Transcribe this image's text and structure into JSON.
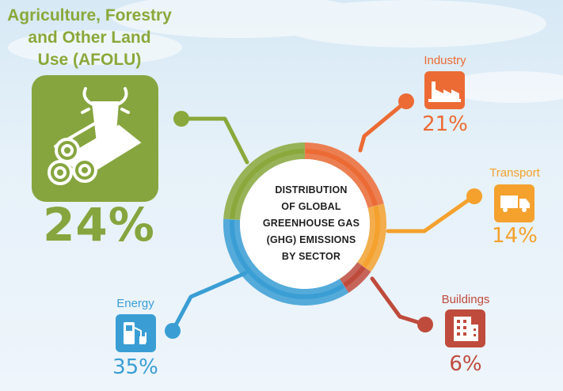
{
  "title": "DISTRIBUTION OF GLOBAL GREENHOUSE GAS (GHG) EMISSIONS BY SECTOR",
  "title_lines": [
    "DISTRIBUTION",
    "OF GLOBAL",
    "GREENHOUSE GAS",
    "(GHG) EMISSIONS",
    "BY  SECTOR"
  ],
  "sectors": [
    {
      "name": "Agriculture, Forestry and Other Land Use (AFOLU)",
      "name_lines": [
        "Agriculture, Forestry",
        "and Other Land",
        "Use (AFOLU)"
      ],
      "percent_label": "24%",
      "value": 24,
      "color": "#8aa83b",
      "icon": "cow-and-logs-icon"
    },
    {
      "name": "Industry",
      "percent_label": "21%",
      "value": 21,
      "color": "#ec6b35",
      "icon": "factory-icon"
    },
    {
      "name": "Transport",
      "percent_label": "14%",
      "value": 14,
      "color": "#f4a12e",
      "icon": "truck-icon"
    },
    {
      "name": "Buildings",
      "percent_label": "6%",
      "value": 6,
      "color": "#bf4b3c",
      "icon": "building-icon"
    },
    {
      "name": "Energy",
      "percent_label": "35%",
      "value": 35,
      "color": "#3a9ed4",
      "icon": "fuel-pump-icon"
    }
  ],
  "chart_data": {
    "type": "pie",
    "title": "DISTRIBUTION OF GLOBAL GREENHOUSE GAS (GHG) EMISSIONS BY SECTOR",
    "categories": [
      "Agriculture, Forestry and Other Land Use (AFOLU)",
      "Industry",
      "Transport",
      "Buildings",
      "Energy"
    ],
    "values": [
      24,
      21,
      14,
      6,
      35
    ],
    "colors": [
      "#8aa83b",
      "#ec6b35",
      "#f4a12e",
      "#bf4b3c",
      "#3a9ed4"
    ]
  }
}
